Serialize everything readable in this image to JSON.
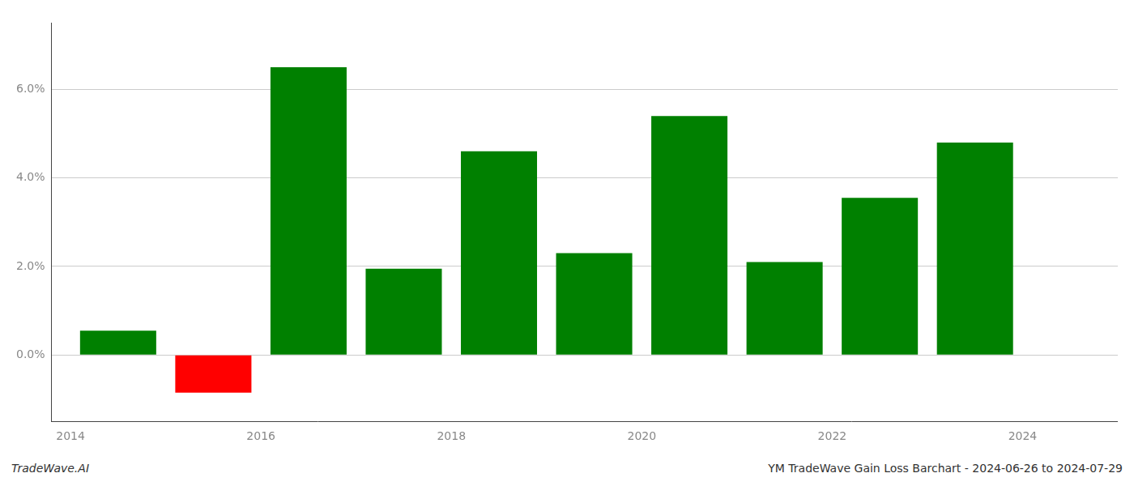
{
  "chart_data": {
    "type": "bar",
    "x": [
      2014.5,
      2015.5,
      2016.5,
      2017.5,
      2018.5,
      2019.5,
      2020.5,
      2021.5,
      2022.5,
      2023.5
    ],
    "values": [
      0.0055,
      -0.0085,
      0.065,
      0.0195,
      0.046,
      0.023,
      0.054,
      0.021,
      0.0355,
      0.048
    ],
    "colors": [
      "#008000",
      "#ff0000",
      "#008000",
      "#008000",
      "#008000",
      "#008000",
      "#008000",
      "#008000",
      "#008000",
      "#008000"
    ],
    "xlim": [
      2013.8,
      2025.0
    ],
    "xticks": [
      2014,
      2016,
      2018,
      2020,
      2022,
      2024
    ],
    "ylim": [
      -0.015,
      0.075
    ],
    "yticks": [
      {
        "value": 0.0,
        "label": "0.0%"
      },
      {
        "value": 0.02,
        "label": "2.0%"
      },
      {
        "value": 0.04,
        "label": "4.0%"
      },
      {
        "value": 0.06,
        "label": "6.0%"
      }
    ],
    "grid": "y",
    "annotations": [
      "TradeWave.AI",
      "YM TradeWave Gain Loss Barchart - 2024-06-26 to 2024-07-29"
    ]
  }
}
